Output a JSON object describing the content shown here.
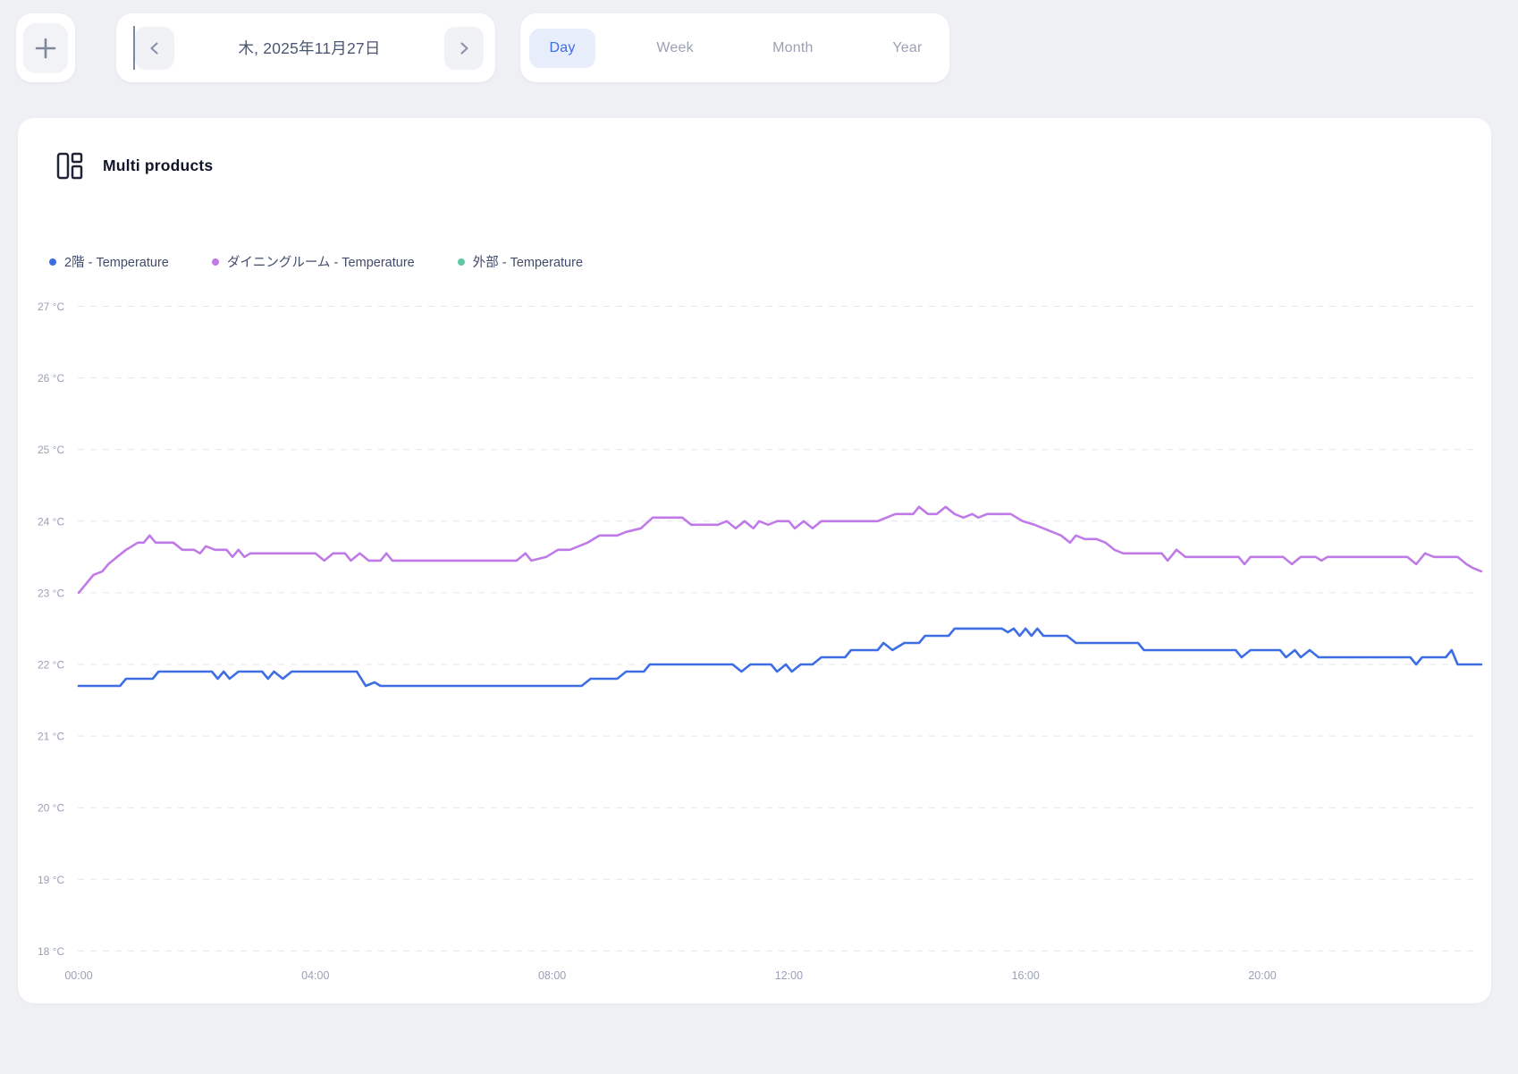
{
  "toolbar": {
    "add_button_icon": "plus-icon",
    "date_nav": {
      "prev_icon": "chevron-left-icon",
      "date_label": "木, 2025年11月27日",
      "next_icon": "chevron-right-icon"
    },
    "range_tabs": [
      {
        "label": "Day",
        "active": true
      },
      {
        "label": "Week",
        "active": false
      },
      {
        "label": "Month",
        "active": false
      },
      {
        "label": "Year",
        "active": false
      }
    ]
  },
  "card": {
    "icon": "multi-products-icon",
    "title": "Multi products"
  },
  "colors": {
    "page_bg": "#eef0f4",
    "card_bg": "#ffffff",
    "tab_active_bg": "#e7edfb",
    "accent_blue": "#3d6ee3",
    "series_blue": "#3d6ee3",
    "series_purple": "#c07ae8",
    "series_teal": "#5fc9a6",
    "grid": "#e4e6ee",
    "axis_text": "#99a1b7",
    "dark_text": "#10152a"
  },
  "chart_data": {
    "type": "line",
    "title": "Multi products",
    "grid": "horizontal-dashed",
    "legend_position": "top-left",
    "x_axis": {
      "unit": "time of day",
      "domain_hours": [
        0,
        24
      ],
      "tick_hours": [
        0,
        4,
        8,
        12,
        16,
        20
      ],
      "tick_labels": [
        "00:00",
        "04:00",
        "08:00",
        "12:00",
        "16:00",
        "20:00"
      ]
    },
    "y_axis": {
      "unit": "°C",
      "domain": [
        18,
        27
      ],
      "ticks": [
        27,
        26,
        25,
        24,
        23,
        22,
        21,
        20,
        19,
        18
      ],
      "tick_suffix": " °C"
    },
    "series": [
      {
        "name": "2階 - Temperature",
        "color": "#3d6ee3",
        "points": [
          [
            0.0,
            21.7
          ],
          [
            0.7,
            21.7
          ],
          [
            0.8,
            21.8
          ],
          [
            1.25,
            21.8
          ],
          [
            1.35,
            21.9
          ],
          [
            2.25,
            21.9
          ],
          [
            2.35,
            21.8
          ],
          [
            2.45,
            21.9
          ],
          [
            2.55,
            21.8
          ],
          [
            2.7,
            21.9
          ],
          [
            3.1,
            21.9
          ],
          [
            3.2,
            21.8
          ],
          [
            3.3,
            21.9
          ],
          [
            3.45,
            21.8
          ],
          [
            3.6,
            21.9
          ],
          [
            4.7,
            21.9
          ],
          [
            4.85,
            21.7
          ],
          [
            5.0,
            21.75
          ],
          [
            5.1,
            21.7
          ],
          [
            8.5,
            21.7
          ],
          [
            8.65,
            21.8
          ],
          [
            9.1,
            21.8
          ],
          [
            9.25,
            21.9
          ],
          [
            9.55,
            21.9
          ],
          [
            9.65,
            22.0
          ],
          [
            11.05,
            22.0
          ],
          [
            11.2,
            21.9
          ],
          [
            11.35,
            22.0
          ],
          [
            11.7,
            22.0
          ],
          [
            11.8,
            21.9
          ],
          [
            11.95,
            22.0
          ],
          [
            12.05,
            21.9
          ],
          [
            12.2,
            22.0
          ],
          [
            12.4,
            22.0
          ],
          [
            12.55,
            22.1
          ],
          [
            12.95,
            22.1
          ],
          [
            13.05,
            22.2
          ],
          [
            13.5,
            22.2
          ],
          [
            13.6,
            22.3
          ],
          [
            13.75,
            22.2
          ],
          [
            13.95,
            22.3
          ],
          [
            14.2,
            22.3
          ],
          [
            14.3,
            22.4
          ],
          [
            14.7,
            22.4
          ],
          [
            14.8,
            22.5
          ],
          [
            15.6,
            22.5
          ],
          [
            15.7,
            22.45
          ],
          [
            15.8,
            22.5
          ],
          [
            15.9,
            22.4
          ],
          [
            16.0,
            22.5
          ],
          [
            16.1,
            22.4
          ],
          [
            16.2,
            22.5
          ],
          [
            16.3,
            22.4
          ],
          [
            16.7,
            22.4
          ],
          [
            16.85,
            22.3
          ],
          [
            17.9,
            22.3
          ],
          [
            18.0,
            22.2
          ],
          [
            19.55,
            22.2
          ],
          [
            19.65,
            22.1
          ],
          [
            19.8,
            22.2
          ],
          [
            20.3,
            22.2
          ],
          [
            20.4,
            22.1
          ],
          [
            20.55,
            22.2
          ],
          [
            20.65,
            22.1
          ],
          [
            20.8,
            22.2
          ],
          [
            20.95,
            22.1
          ],
          [
            22.5,
            22.1
          ],
          [
            22.6,
            22.0
          ],
          [
            22.7,
            22.1
          ],
          [
            23.1,
            22.1
          ],
          [
            23.2,
            22.2
          ],
          [
            23.3,
            22.0
          ],
          [
            23.7,
            22.0
          ]
        ]
      },
      {
        "name": "ダイニングルーム - Temperature",
        "color": "#c07ae8",
        "points": [
          [
            0.0,
            23.0
          ],
          [
            0.1,
            23.1
          ],
          [
            0.25,
            23.25
          ],
          [
            0.4,
            23.3
          ],
          [
            0.5,
            23.4
          ],
          [
            0.65,
            23.5
          ],
          [
            0.8,
            23.6
          ],
          [
            1.0,
            23.7
          ],
          [
            1.1,
            23.7
          ],
          [
            1.2,
            23.8
          ],
          [
            1.3,
            23.7
          ],
          [
            1.6,
            23.7
          ],
          [
            1.75,
            23.6
          ],
          [
            1.95,
            23.6
          ],
          [
            2.05,
            23.55
          ],
          [
            2.15,
            23.65
          ],
          [
            2.3,
            23.6
          ],
          [
            2.5,
            23.6
          ],
          [
            2.6,
            23.5
          ],
          [
            2.7,
            23.6
          ],
          [
            2.8,
            23.5
          ],
          [
            2.9,
            23.55
          ],
          [
            4.0,
            23.55
          ],
          [
            4.15,
            23.45
          ],
          [
            4.3,
            23.55
          ],
          [
            4.5,
            23.55
          ],
          [
            4.6,
            23.45
          ],
          [
            4.75,
            23.55
          ],
          [
            4.9,
            23.45
          ],
          [
            5.1,
            23.45
          ],
          [
            5.2,
            23.55
          ],
          [
            5.3,
            23.45
          ],
          [
            7.4,
            23.45
          ],
          [
            7.55,
            23.55
          ],
          [
            7.65,
            23.45
          ],
          [
            7.9,
            23.5
          ],
          [
            8.1,
            23.6
          ],
          [
            8.3,
            23.6
          ],
          [
            8.45,
            23.65
          ],
          [
            8.6,
            23.7
          ],
          [
            8.8,
            23.8
          ],
          [
            9.1,
            23.8
          ],
          [
            9.25,
            23.85
          ],
          [
            9.5,
            23.9
          ],
          [
            9.7,
            24.05
          ],
          [
            10.2,
            24.05
          ],
          [
            10.35,
            23.95
          ],
          [
            10.8,
            23.95
          ],
          [
            10.95,
            24.0
          ],
          [
            11.1,
            23.9
          ],
          [
            11.25,
            24.0
          ],
          [
            11.4,
            23.9
          ],
          [
            11.5,
            24.0
          ],
          [
            11.65,
            23.95
          ],
          [
            11.8,
            24.0
          ],
          [
            12.0,
            24.0
          ],
          [
            12.1,
            23.9
          ],
          [
            12.25,
            24.0
          ],
          [
            12.4,
            23.9
          ],
          [
            12.55,
            24.0
          ],
          [
            13.5,
            24.0
          ],
          [
            13.65,
            24.05
          ],
          [
            13.8,
            24.1
          ],
          [
            14.1,
            24.1
          ],
          [
            14.2,
            24.2
          ],
          [
            14.35,
            24.1
          ],
          [
            14.5,
            24.1
          ],
          [
            14.65,
            24.2
          ],
          [
            14.8,
            24.1
          ],
          [
            14.95,
            24.05
          ],
          [
            15.1,
            24.1
          ],
          [
            15.2,
            24.05
          ],
          [
            15.35,
            24.1
          ],
          [
            15.75,
            24.1
          ],
          [
            15.95,
            24.0
          ],
          [
            16.15,
            23.95
          ],
          [
            16.3,
            23.9
          ],
          [
            16.45,
            23.85
          ],
          [
            16.6,
            23.8
          ],
          [
            16.75,
            23.7
          ],
          [
            16.85,
            23.8
          ],
          [
            17.0,
            23.75
          ],
          [
            17.2,
            23.75
          ],
          [
            17.35,
            23.7
          ],
          [
            17.5,
            23.6
          ],
          [
            17.65,
            23.55
          ],
          [
            18.3,
            23.55
          ],
          [
            18.4,
            23.45
          ],
          [
            18.55,
            23.6
          ],
          [
            18.7,
            23.5
          ],
          [
            19.6,
            23.5
          ],
          [
            19.7,
            23.4
          ],
          [
            19.8,
            23.5
          ],
          [
            20.35,
            23.5
          ],
          [
            20.5,
            23.4
          ],
          [
            20.65,
            23.5
          ],
          [
            20.9,
            23.5
          ],
          [
            21.0,
            23.45
          ],
          [
            21.1,
            23.5
          ],
          [
            22.45,
            23.5
          ],
          [
            22.6,
            23.4
          ],
          [
            22.75,
            23.55
          ],
          [
            22.9,
            23.5
          ],
          [
            23.3,
            23.5
          ],
          [
            23.45,
            23.4
          ],
          [
            23.55,
            23.35
          ],
          [
            23.7,
            23.3
          ]
        ]
      },
      {
        "name": "外部 - Temperature",
        "color": "#5fc9a6",
        "points": []
      }
    ]
  }
}
